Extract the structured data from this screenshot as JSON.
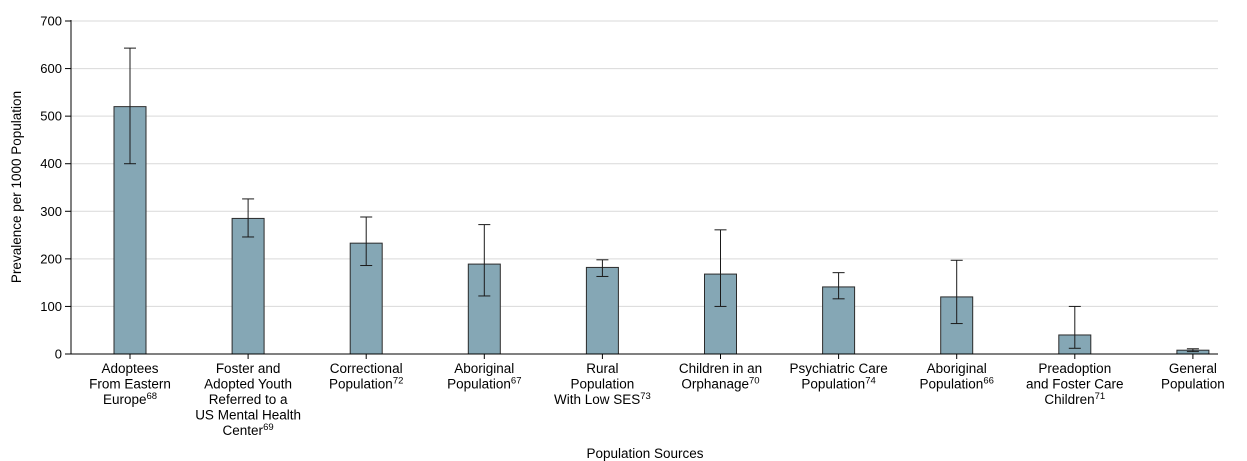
{
  "chart_data": {
    "type": "bar",
    "xlabel": "Population Sources",
    "ylabel": "Prevalence per 1000 Population",
    "ylim": [
      0,
      700
    ],
    "yticks": [
      0,
      100,
      200,
      300,
      400,
      500,
      600,
      700
    ],
    "grid": "horizontal",
    "colors": {
      "bar": "#85a7b5",
      "bar_stroke": "#2b2b2b",
      "grid": "#d9d9d9"
    },
    "categories": [
      {
        "lines": [
          [
            "Adoptees",
            ""
          ],
          [
            "From Eastern",
            ""
          ],
          [
            "Europe",
            "68"
          ]
        ]
      },
      {
        "lines": [
          [
            "Foster and",
            ""
          ],
          [
            "Adopted Youth",
            ""
          ],
          [
            "Referred to a",
            ""
          ],
          [
            "US Mental Health",
            ""
          ],
          [
            "Center",
            "69"
          ]
        ]
      },
      {
        "lines": [
          [
            "Correctional",
            ""
          ],
          [
            "Population",
            "72"
          ]
        ]
      },
      {
        "lines": [
          [
            "Aboriginal",
            ""
          ],
          [
            "Population",
            "67"
          ]
        ]
      },
      {
        "lines": [
          [
            "Rural",
            ""
          ],
          [
            "Population",
            ""
          ],
          [
            "With Low SES",
            "73"
          ]
        ]
      },
      {
        "lines": [
          [
            "Children in an",
            ""
          ],
          [
            "Orphanage",
            "70"
          ]
        ]
      },
      {
        "lines": [
          [
            "Psychiatric Care",
            ""
          ],
          [
            "Population",
            "74"
          ]
        ]
      },
      {
        "lines": [
          [
            "Aboriginal",
            ""
          ],
          [
            "Population",
            "66"
          ]
        ]
      },
      {
        "lines": [
          [
            "Preadoption",
            ""
          ],
          [
            "and Foster Care",
            ""
          ],
          [
            "Children",
            "71"
          ]
        ]
      },
      {
        "lines": [
          [
            "General",
            ""
          ],
          [
            "Population",
            ""
          ]
        ]
      }
    ],
    "values": [
      520,
      285,
      233,
      189,
      182,
      168,
      141,
      120,
      40,
      8
    ],
    "error_low": [
      400,
      246,
      186,
      122,
      163,
      100,
      116,
      64,
      12,
      5
    ],
    "error_high": [
      643,
      326,
      288,
      272,
      198,
      261,
      171,
      197,
      100,
      11
    ]
  }
}
